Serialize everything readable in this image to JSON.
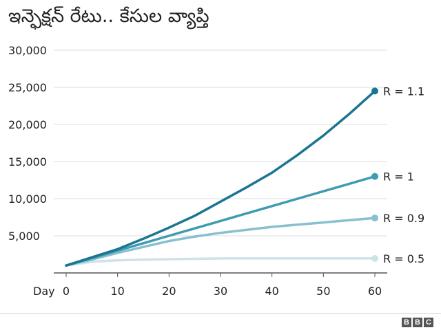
{
  "header": {
    "title": "ఇన్ఫెక్షన్ రేటు.. కేసుల వ్యాప్తి"
  },
  "logo": {
    "letters": [
      "B",
      "B",
      "C"
    ]
  },
  "chart_data": {
    "type": "line",
    "title": "ఇన్ఫెక్షన్ రేటు.. కేసుల వ్యాప్తి",
    "xlabel": "Day",
    "ylabel": "",
    "xlim": [
      0,
      62
    ],
    "ylim": [
      0,
      30000
    ],
    "x_ticks": [
      0,
      10,
      20,
      30,
      40,
      50,
      60
    ],
    "y_ticks": [
      5000,
      10000,
      15000,
      20000,
      25000,
      30000
    ],
    "y_tick_labels": [
      "5,000",
      "10,000",
      "15,000",
      "20,000",
      "25,000",
      "30,000"
    ],
    "grid": "horizontal",
    "x": [
      0,
      5,
      10,
      15,
      20,
      25,
      30,
      35,
      40,
      45,
      50,
      55,
      60
    ],
    "series": [
      {
        "name": "R = 1.1",
        "color": "#1a7591",
        "values": [
          1000,
          2100,
          3200,
          4600,
          6100,
          7700,
          9600,
          11500,
          13500,
          15900,
          18500,
          21400,
          24500
        ]
      },
      {
        "name": "R = 1",
        "color": "#3e9bb0",
        "values": [
          1000,
          2000,
          3000,
          4000,
          5000,
          6000,
          7000,
          8000,
          9000,
          10000,
          11000,
          12000,
          13000
        ]
      },
      {
        "name": "R = 0.9",
        "color": "#87c0cf",
        "values": [
          1000,
          1800,
          2700,
          3500,
          4300,
          4900,
          5400,
          5800,
          6200,
          6500,
          6800,
          7100,
          7400
        ]
      },
      {
        "name": "R = 0.5",
        "color": "#cfe2e7",
        "values": [
          1000,
          1500,
          1700,
          1800,
          1850,
          1900,
          1950,
          1950,
          1950,
          1950,
          1950,
          1950,
          1950
        ]
      }
    ]
  }
}
